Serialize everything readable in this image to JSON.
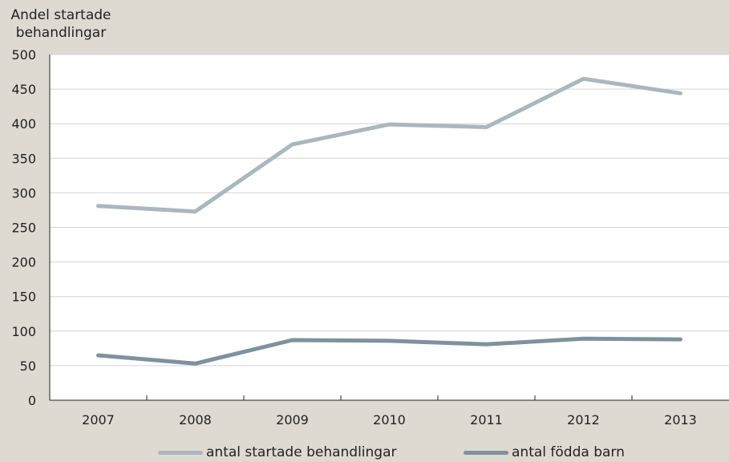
{
  "chart_data": {
    "type": "line",
    "ylabel_line1": "Andel startade",
    "ylabel_line2": "behandlingar",
    "xlabel": "",
    "title": "",
    "categories": [
      "2007",
      "2008",
      "2009",
      "2010",
      "2011",
      "2012",
      "2013"
    ],
    "ylim": [
      0,
      500
    ],
    "yticks": [
      0,
      50,
      100,
      150,
      200,
      250,
      300,
      350,
      400,
      450,
      500
    ],
    "grid": true,
    "legend_position": "bottom",
    "series": [
      {
        "name": "antal startade behandlingar",
        "color": "#a9b7bf",
        "values": [
          281,
          273,
          370,
          399,
          395,
          465,
          444
        ]
      },
      {
        "name": "antal födda barn",
        "color": "#7d929d",
        "values": [
          65,
          53,
          87,
          86,
          81,
          89,
          88
        ]
      }
    ]
  }
}
